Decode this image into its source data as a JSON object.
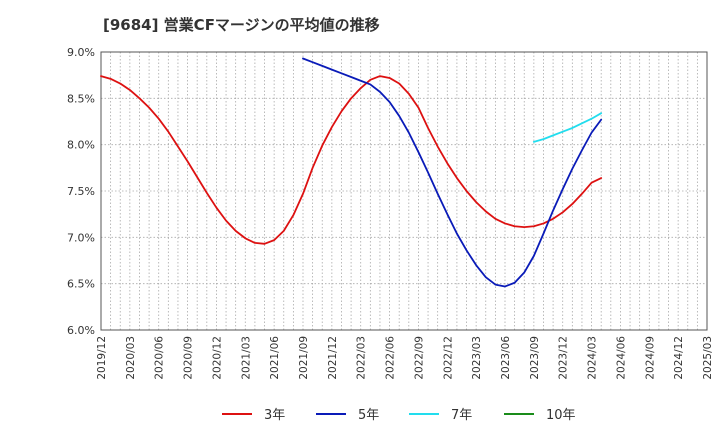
{
  "chart_data": {
    "type": "line",
    "title": "[9684]  営業CFマージンの平均値の推移",
    "xlabel": "",
    "ylabel": "",
    "ylim": [
      6.0,
      9.0
    ],
    "yticks": [
      "6.0%",
      "6.5%",
      "7.0%",
      "7.5%",
      "8.0%",
      "8.5%",
      "9.0%"
    ],
    "yvalues": [
      6.0,
      6.5,
      7.0,
      7.5,
      8.0,
      8.5,
      9.0
    ],
    "xticks": [
      "2019/12",
      "2020/03",
      "2020/06",
      "2020/09",
      "2020/12",
      "2021/03",
      "2021/06",
      "2021/09",
      "2021/12",
      "2022/03",
      "2022/06",
      "2022/09",
      "2022/12",
      "2023/03",
      "2023/06",
      "2023/09",
      "2023/12",
      "2024/03",
      "2024/06",
      "2024/09",
      "2024/12",
      "2025/03"
    ],
    "grid": true,
    "legend_position": "bottom",
    "series": [
      {
        "name": "3年",
        "color": "#dd1111",
        "points": [
          [
            "2019/12",
            8.74
          ],
          [
            "2020/01",
            8.71
          ],
          [
            "2020/02",
            8.66
          ],
          [
            "2020/03",
            8.59
          ],
          [
            "2020/04",
            8.5
          ],
          [
            "2020/05",
            8.4
          ],
          [
            "2020/06",
            8.28
          ],
          [
            "2020/07",
            8.14
          ],
          [
            "2020/08",
            7.98
          ],
          [
            "2020/09",
            7.82
          ],
          [
            "2020/10",
            7.65
          ],
          [
            "2020/11",
            7.48
          ],
          [
            "2020/12",
            7.32
          ],
          [
            "2021/01",
            7.18
          ],
          [
            "2021/02",
            7.07
          ],
          [
            "2021/03",
            6.99
          ],
          [
            "2021/04",
            6.94
          ],
          [
            "2021/05",
            6.93
          ],
          [
            "2021/06",
            6.97
          ],
          [
            "2021/07",
            7.07
          ],
          [
            "2021/08",
            7.24
          ],
          [
            "2021/09",
            7.47
          ],
          [
            "2021/10",
            7.75
          ],
          [
            "2021/11",
            7.99
          ],
          [
            "2021/12",
            8.19
          ],
          [
            "2022/01",
            8.36
          ],
          [
            "2022/02",
            8.5
          ],
          [
            "2022/03",
            8.61
          ],
          [
            "2022/04",
            8.7
          ],
          [
            "2022/05",
            8.74
          ],
          [
            "2022/06",
            8.72
          ],
          [
            "2022/07",
            8.66
          ],
          [
            "2022/08",
            8.55
          ],
          [
            "2022/09",
            8.4
          ],
          [
            "2022/10",
            8.18
          ],
          [
            "2022/11",
            7.98
          ],
          [
            "2022/12",
            7.8
          ],
          [
            "2023/01",
            7.64
          ],
          [
            "2023/02",
            7.5
          ],
          [
            "2023/03",
            7.38
          ],
          [
            "2023/04",
            7.28
          ],
          [
            "2023/05",
            7.2
          ],
          [
            "2023/06",
            7.15
          ],
          [
            "2023/07",
            7.12
          ],
          [
            "2023/08",
            7.11
          ],
          [
            "2023/09",
            7.12
          ],
          [
            "2023/10",
            7.15
          ],
          [
            "2023/11",
            7.2
          ],
          [
            "2023/12",
            7.27
          ],
          [
            "2024/01",
            7.36
          ],
          [
            "2024/02",
            7.47
          ],
          [
            "2024/03",
            7.59
          ],
          [
            "2024/04",
            7.64
          ]
        ]
      },
      {
        "name": "5年",
        "color": "#0a1bb8",
        "points": [
          [
            "2021/09",
            8.93
          ],
          [
            "2021/10",
            8.89
          ],
          [
            "2021/11",
            8.85
          ],
          [
            "2021/12",
            8.81
          ],
          [
            "2022/01",
            8.77
          ],
          [
            "2022/02",
            8.73
          ],
          [
            "2022/03",
            8.69
          ],
          [
            "2022/04",
            8.65
          ],
          [
            "2022/05",
            8.57
          ],
          [
            "2022/06",
            8.46
          ],
          [
            "2022/07",
            8.31
          ],
          [
            "2022/08",
            8.13
          ],
          [
            "2022/09",
            7.92
          ],
          [
            "2022/10",
            7.7
          ],
          [
            "2022/11",
            7.47
          ],
          [
            "2022/12",
            7.25
          ],
          [
            "2023/01",
            7.04
          ],
          [
            "2023/02",
            6.86
          ],
          [
            "2023/03",
            6.7
          ],
          [
            "2023/04",
            6.57
          ],
          [
            "2023/05",
            6.49
          ],
          [
            "2023/06",
            6.47
          ],
          [
            "2023/07",
            6.51
          ],
          [
            "2023/08",
            6.62
          ],
          [
            "2023/09",
            6.8
          ],
          [
            "2023/10",
            7.04
          ],
          [
            "2023/11",
            7.29
          ],
          [
            "2023/12",
            7.52
          ],
          [
            "2024/01",
            7.74
          ],
          [
            "2024/02",
            7.94
          ],
          [
            "2024/03",
            8.13
          ],
          [
            "2024/04",
            8.27
          ]
        ]
      },
      {
        "name": "7年",
        "color": "#22ddee",
        "points": [
          [
            "2023/09",
            8.03
          ],
          [
            "2023/10",
            8.06
          ],
          [
            "2023/11",
            8.1
          ],
          [
            "2023/12",
            8.14
          ],
          [
            "2024/01",
            8.18
          ],
          [
            "2024/02",
            8.23
          ],
          [
            "2024/03",
            8.28
          ],
          [
            "2024/04",
            8.34
          ]
        ]
      },
      {
        "name": "10年",
        "color": "#1a8c1a",
        "points": []
      }
    ]
  }
}
